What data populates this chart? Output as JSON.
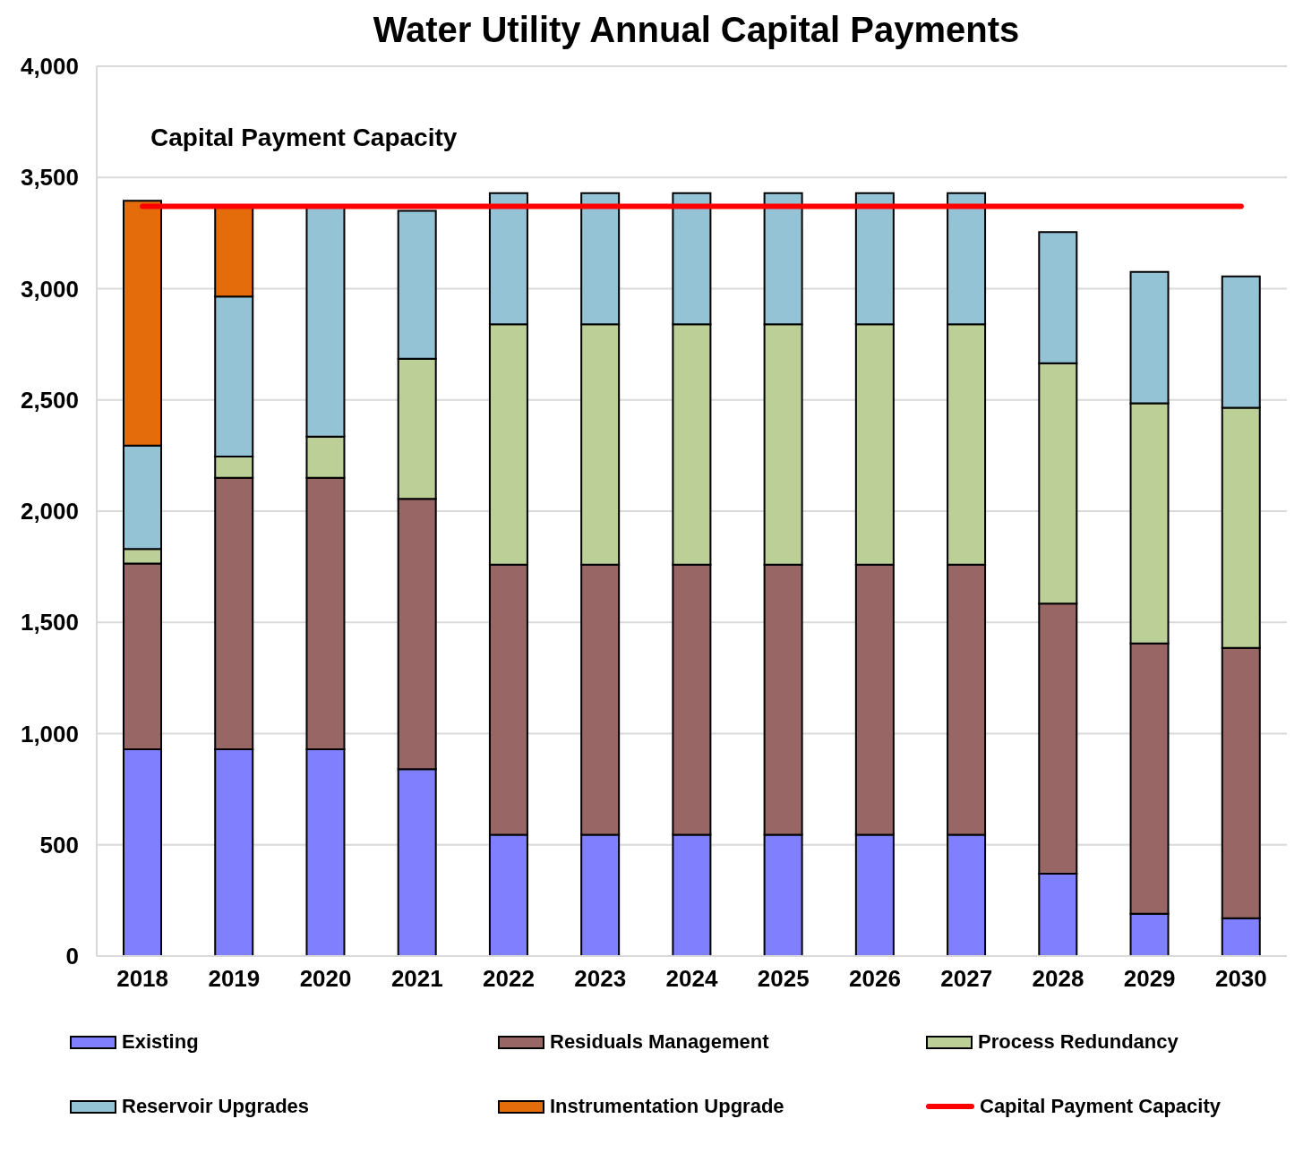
{
  "chart_data": {
    "type": "bar",
    "title": "Water Utility Annual Capital Payments",
    "categories": [
      "2018",
      "2019",
      "2020",
      "2021",
      "2022",
      "2023",
      "2024",
      "2025",
      "2026",
      "2027",
      "2028",
      "2029",
      "2030"
    ],
    "stacked": true,
    "series": [
      {
        "name": "Existing",
        "color": "#8080ff",
        "values": [
          930,
          930,
          930,
          840,
          545,
          545,
          545,
          545,
          545,
          545,
          370,
          190,
          170
        ]
      },
      {
        "name": "Residuals Management",
        "color": "#996666",
        "values": [
          835,
          1220,
          1220,
          1215,
          1215,
          1215,
          1215,
          1215,
          1215,
          1215,
          1215,
          1215,
          1215
        ]
      },
      {
        "name": "Process Redundancy",
        "color": "#bbcf97",
        "values": [
          65,
          95,
          185,
          630,
          1080,
          1080,
          1080,
          1080,
          1080,
          1080,
          1080,
          1080,
          1080
        ]
      },
      {
        "name": "Reservoir Upgrades",
        "color": "#93c3d4",
        "values": [
          465,
          720,
          1030,
          665,
          590,
          590,
          590,
          590,
          590,
          590,
          590,
          590,
          590
        ]
      },
      {
        "name": "Instrumentation Upgrade",
        "color": "#e46c0a",
        "values": [
          1100,
          400,
          null,
          null,
          null,
          null,
          null,
          null,
          null,
          null,
          null,
          null,
          null
        ]
      },
      {
        "name": "Capital Payment Capacity",
        "type": "line",
        "color": "#ff0000",
        "values": [
          3370,
          3370,
          3370,
          3370,
          3370,
          3370,
          3370,
          3370,
          3370,
          3370,
          3370,
          3370,
          3370
        ]
      }
    ],
    "ylim": [
      0,
      4000
    ],
    "yticks": [
      0,
      500,
      {
        "value": 1000,
        "label": "1,000"
      },
      {
        "value": 1500,
        "label": "1,500"
      },
      {
        "value": 2000,
        "label": "2,000"
      },
      {
        "value": 2500,
        "label": "2,500"
      },
      {
        "value": 3000,
        "label": "3,000"
      },
      {
        "value": 3500,
        "label": "3,500"
      },
      {
        "value": 4000,
        "label": "4,000"
      }
    ],
    "grid": "y",
    "legend": "bottom",
    "annotations": [
      "Capital Payment Capacity"
    ]
  }
}
